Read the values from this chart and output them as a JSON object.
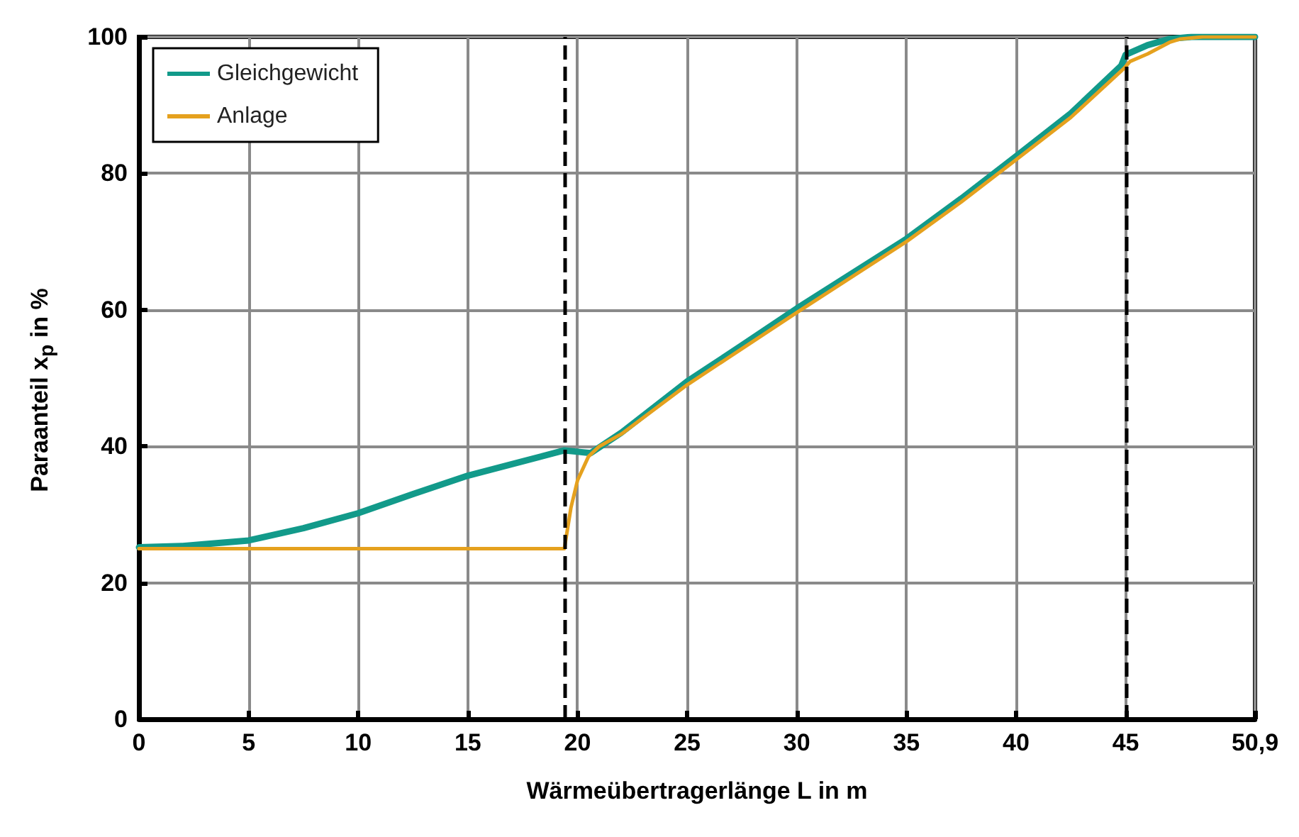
{
  "chart_data": {
    "type": "line",
    "xlabel": "Wärmeübertragerlänge L in m",
    "ylabel": "Paraanteil x$_{p}$ in %",
    "xlim": [
      0,
      50.9
    ],
    "xticks": [
      0,
      5,
      10,
      15,
      20,
      25,
      30,
      35,
      40,
      45,
      {
        "value": 50.9,
        "label": "50,9"
      }
    ],
    "ylim": [
      0,
      100
    ],
    "yticks": [
      0,
      20,
      40,
      60,
      80,
      100
    ],
    "grid": true,
    "legend": "top left",
    "marker": "none",
    "line_style": "solid",
    "ref_lines": [
      {
        "axis": "x",
        "value": 19.4,
        "color": "#000000",
        "line_style": "dashed"
      },
      {
        "axis": "x",
        "value": 45,
        "color": "#000000",
        "line_style": "dashed"
      }
    ],
    "series": [
      {
        "name": "Gleichgewicht",
        "color": "#129a8a",
        "x": [
          0,
          2,
          5,
          7.5,
          10,
          12.5,
          15,
          17.5,
          19.4,
          20,
          20.6,
          22,
          25,
          27.5,
          30,
          32.5,
          35,
          37.5,
          40,
          42.5,
          44.8,
          45,
          46,
          47,
          48,
          50.9
        ],
        "values": [
          25.2,
          25.4,
          26.2,
          28,
          30.2,
          33,
          35.7,
          37.8,
          39.4,
          39.2,
          39,
          42,
          49.5,
          54.8,
          60.2,
          65.3,
          70.4,
          76.3,
          82.5,
          88.8,
          95.8,
          97.4,
          98.8,
          99.7,
          100,
          100
        ]
      },
      {
        "name": "Anlage",
        "color": "#e5a11e",
        "x": [
          0,
          5,
          10,
          15,
          19.4,
          19.5,
          19.7,
          20,
          20.5,
          21,
          22,
          25,
          27.5,
          30,
          32.5,
          35,
          37.5,
          40,
          42.5,
          44.9,
          45.2,
          46,
          47,
          47.5,
          48.5,
          50.9
        ],
        "values": [
          25,
          25,
          25,
          25,
          25,
          27,
          31,
          35,
          38.5,
          40,
          41.8,
          49,
          54.3,
          59.6,
          64.8,
          70,
          75.8,
          82,
          88.2,
          95.3,
          96.4,
          97.5,
          99.2,
          99.7,
          100,
          100
        ]
      }
    ]
  }
}
